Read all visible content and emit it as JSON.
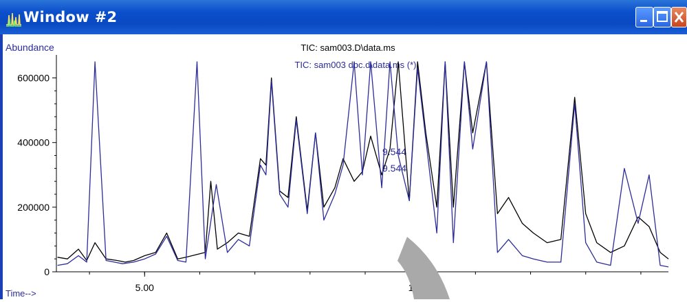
{
  "window": {
    "title": "Window #2",
    "icons": {
      "app": "chromatogram-icon",
      "minimize": "minimize-icon",
      "maximize": "maximize-icon",
      "close": "close-icon"
    }
  },
  "chart_data": {
    "type": "line",
    "title": "TIC: sam003.D\\data.ms",
    "subtitle": "TIC: sam003 dbc.d\\data.ms (*)",
    "ylabel": "Abundance",
    "xlabel": "Time-->",
    "yticks": [
      "0",
      "200000",
      "400000",
      "600000"
    ],
    "xticks": [
      "5.00",
      "10.00"
    ],
    "annotations": [
      "9.544",
      "9.544"
    ],
    "ylim": [
      0,
      650000
    ],
    "xlim": [
      3.4,
      14.5
    ],
    "colors": {
      "series1": "#000000",
      "series2": "#2b2b9a"
    },
    "series": [
      {
        "name": "TIC: sam003.D\\data.ms",
        "x": [
          3.42,
          3.6,
          3.8,
          3.95,
          4.1,
          4.3,
          4.5,
          4.65,
          4.8,
          5.0,
          5.2,
          5.4,
          5.6,
          5.75,
          6.1,
          6.2,
          6.32,
          6.5,
          6.7,
          6.9,
          7.1,
          7.2,
          7.3,
          7.45,
          7.6,
          7.75,
          7.95,
          8.1,
          8.25,
          8.45,
          8.6,
          8.8,
          8.95,
          9.1,
          9.3,
          9.45,
          9.6,
          9.8,
          9.95,
          10.1,
          10.3,
          10.45,
          10.6,
          10.8,
          10.95,
          11.2,
          11.4,
          11.6,
          11.85,
          12.05,
          12.3,
          12.55,
          12.8,
          13.0,
          13.2,
          13.45,
          13.7,
          13.95,
          14.15,
          14.35,
          14.5
        ],
        "y": [
          45000,
          40000,
          70000,
          35000,
          90000,
          40000,
          35000,
          30000,
          35000,
          50000,
          60000,
          120000,
          40000,
          45000,
          60000,
          280000,
          70000,
          90000,
          120000,
          110000,
          350000,
          330000,
          600000,
          250000,
          230000,
          480000,
          190000,
          430000,
          200000,
          260000,
          350000,
          280000,
          310000,
          420000,
          300000,
          380000,
          650000,
          220000,
          650000,
          430000,
          200000,
          650000,
          200000,
          650000,
          430000,
          650000,
          180000,
          230000,
          150000,
          120000,
          90000,
          100000,
          540000,
          180000,
          90000,
          60000,
          80000,
          170000,
          140000,
          60000,
          40000
        ]
      },
      {
        "name": "TIC: sam003 dbc.d\\data.ms (*)",
        "x": [
          3.42,
          3.6,
          3.8,
          3.95,
          4.1,
          4.3,
          4.45,
          4.6,
          4.8,
          5.0,
          5.2,
          5.4,
          5.6,
          5.75,
          5.95,
          6.1,
          6.3,
          6.5,
          6.7,
          6.9,
          7.1,
          7.2,
          7.3,
          7.45,
          7.6,
          7.75,
          7.95,
          8.1,
          8.25,
          8.45,
          8.6,
          8.8,
          8.95,
          9.1,
          9.3,
          9.45,
          9.6,
          9.8,
          9.95,
          10.1,
          10.3,
          10.45,
          10.6,
          10.8,
          10.95,
          11.2,
          11.4,
          11.6,
          11.85,
          12.05,
          12.3,
          12.55,
          12.8,
          13.0,
          13.2,
          13.45,
          13.7,
          13.95,
          14.15,
          14.35,
          14.5
        ],
        "y": [
          20000,
          25000,
          50000,
          30000,
          650000,
          35000,
          30000,
          25000,
          30000,
          40000,
          55000,
          110000,
          35000,
          30000,
          650000,
          40000,
          270000,
          60000,
          100000,
          80000,
          330000,
          300000,
          590000,
          240000,
          200000,
          470000,
          180000,
          430000,
          160000,
          240000,
          330000,
          650000,
          300000,
          650000,
          260000,
          650000,
          360000,
          220000,
          630000,
          410000,
          120000,
          650000,
          90000,
          650000,
          380000,
          650000,
          60000,
          100000,
          50000,
          40000,
          30000,
          30000,
          520000,
          90000,
          30000,
          20000,
          320000,
          150000,
          300000,
          20000,
          15000
        ]
      }
    ]
  }
}
